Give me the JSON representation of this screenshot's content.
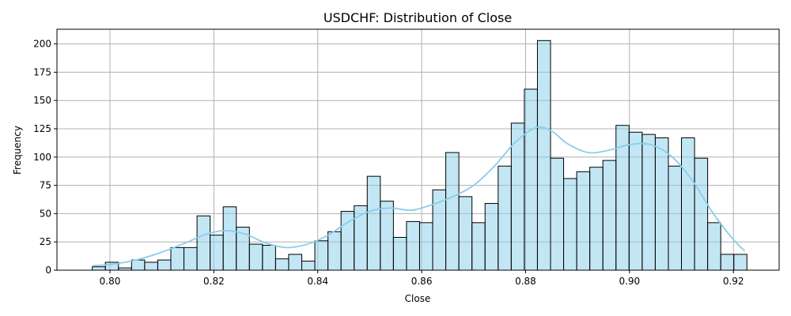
{
  "chart_data": {
    "type": "bar",
    "title": "USDCHF: Distribution of Close",
    "xlabel": "Close",
    "ylabel": "Frequency",
    "xlim": [
      0.7898,
      0.9288
    ],
    "ylim": [
      0,
      213
    ],
    "grid": true,
    "x_ticks": [
      0.8,
      0.82,
      0.84,
      0.86,
      0.88,
      0.9,
      0.92
    ],
    "x_tick_labels": [
      "0.80",
      "0.82",
      "0.84",
      "0.86",
      "0.88",
      "0.90",
      "0.92"
    ],
    "y_ticks": [
      0,
      25,
      50,
      75,
      100,
      125,
      150,
      175,
      200
    ],
    "y_tick_labels": [
      "0",
      "25",
      "50",
      "75",
      "100",
      "125",
      "150",
      "175",
      "200"
    ],
    "bin_start": 0.7966,
    "bin_width": 0.00252,
    "values": [
      3,
      7,
      2,
      9,
      7,
      9,
      20,
      20,
      48,
      31,
      56,
      38,
      23,
      22,
      10,
      14,
      8,
      26,
      34,
      52,
      57,
      83,
      61,
      29,
      43,
      42,
      71,
      104,
      65,
      42,
      59,
      92,
      130,
      160,
      203,
      99,
      81,
      87,
      91,
      97,
      128,
      122,
      120,
      117,
      92,
      117,
      99,
      42,
      14,
      14
    ],
    "kde": {
      "x": [
        0.7966,
        0.8,
        0.805,
        0.81,
        0.815,
        0.818,
        0.822,
        0.826,
        0.83,
        0.834,
        0.838,
        0.842,
        0.846,
        0.85,
        0.854,
        0.858,
        0.862,
        0.866,
        0.87,
        0.874,
        0.878,
        0.882,
        0.885,
        0.888,
        0.892,
        0.896,
        0.9,
        0.904,
        0.908,
        0.912,
        0.916,
        0.92,
        0.9222
      ],
      "y": [
        4,
        5,
        9,
        16,
        25,
        31,
        35,
        32,
        24,
        20,
        23,
        31,
        43,
        52,
        55,
        53,
        58,
        65,
        75,
        92,
        113,
        126,
        123,
        112,
        104,
        106,
        111,
        111,
        101,
        80,
        51,
        27,
        17
      ]
    }
  }
}
